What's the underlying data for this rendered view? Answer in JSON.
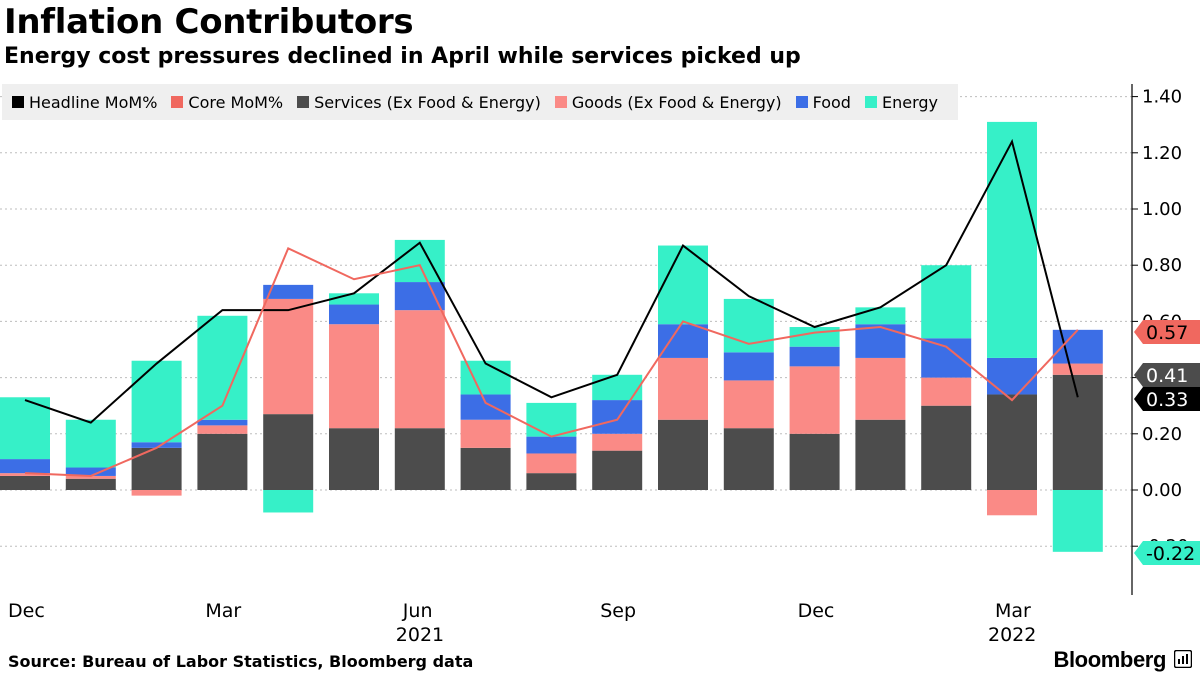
{
  "title": "Inflation Contributors",
  "subtitle": "Energy cost pressures declined in April while services picked up",
  "source": "Source: Bureau of Labor Statistics, Bloomberg data",
  "brand": "Bloomberg",
  "legend": [
    {
      "label": "Headline MoM%",
      "color": "#000000"
    },
    {
      "label": "Core MoM%",
      "color": "#f0685f"
    },
    {
      "label": "Services (Ex Food & Energy)",
      "color": "#4c4c4c"
    },
    {
      "label": "Goods (Ex Food & Energy)",
      "color": "#fa8a86"
    },
    {
      "label": "Food",
      "color": "#3c6ee6"
    },
    {
      "label": "Energy",
      "color": "#36f0c8"
    }
  ],
  "chart_data": {
    "type": "bar",
    "title": "Inflation Contributors",
    "subtitle": "Energy cost pressures declined in April while services picked up",
    "ylim": [
      -0.3,
      1.45
    ],
    "yticks": [
      1.4,
      1.2,
      1.0,
      0.8,
      0.6,
      0.4,
      0.2,
      0.0,
      -0.2
    ],
    "ytick_labels": [
      "1.40",
      "1.20",
      "1.00",
      "0.80",
      "0.60",
      "0.40",
      "0.20",
      "0.00",
      "-0.20"
    ],
    "x_tick_labels": [
      {
        "index": 0,
        "label": "Dec"
      },
      {
        "index": 3,
        "label": "Mar"
      },
      {
        "index": 6,
        "label": "Jun",
        "year": "2021"
      },
      {
        "index": 9,
        "label": "Sep"
      },
      {
        "index": 12,
        "label": "Dec"
      },
      {
        "index": 15,
        "label": "Mar",
        "year": "2022"
      }
    ],
    "categories": [
      "Dec 2020",
      "Jan 2021",
      "Feb 2021",
      "Mar 2021",
      "Apr 2021",
      "May 2021",
      "Jun 2021",
      "Jul 2021",
      "Aug 2021",
      "Sep 2021",
      "Oct 2021",
      "Nov 2021",
      "Dec 2021",
      "Jan 2022",
      "Feb 2022",
      "Mar 2022",
      "Apr 2022"
    ],
    "stacked_series": [
      {
        "name": "Services (Ex Food & Energy)",
        "color": "#4c4c4c",
        "values": [
          0.05,
          0.04,
          0.15,
          0.2,
          0.27,
          0.22,
          0.22,
          0.15,
          0.06,
          0.14,
          0.25,
          0.22,
          0.2,
          0.25,
          0.3,
          0.34,
          0.41
        ]
      },
      {
        "name": "Goods (Ex Food & Energy)",
        "color": "#fa8a86",
        "values": [
          0.01,
          0.01,
          -0.02,
          0.03,
          0.41,
          0.37,
          0.42,
          0.1,
          0.07,
          0.06,
          0.22,
          0.17,
          0.24,
          0.22,
          0.1,
          -0.09,
          0.04
        ]
      },
      {
        "name": "Food",
        "color": "#3c6ee6",
        "values": [
          0.05,
          0.03,
          0.02,
          0.02,
          0.05,
          0.07,
          0.1,
          0.09,
          0.06,
          0.12,
          0.12,
          0.1,
          0.07,
          0.12,
          0.14,
          0.13,
          0.12
        ]
      },
      {
        "name": "Energy",
        "color": "#36f0c8",
        "values": [
          0.22,
          0.17,
          0.29,
          0.37,
          -0.08,
          0.04,
          0.15,
          0.12,
          0.12,
          0.09,
          0.28,
          0.19,
          0.07,
          0.06,
          0.26,
          0.84,
          -0.22
        ]
      }
    ],
    "line_series": [
      {
        "name": "Headline MoM%",
        "color": "#000000",
        "values": [
          0.32,
          0.24,
          0.45,
          0.64,
          0.64,
          0.7,
          0.88,
          0.45,
          0.33,
          0.41,
          0.87,
          0.69,
          0.58,
          0.65,
          0.8,
          1.24,
          0.33
        ]
      },
      {
        "name": "Core MoM%",
        "color": "#f0685f",
        "values": [
          0.06,
          0.05,
          0.15,
          0.3,
          0.86,
          0.75,
          0.8,
          0.31,
          0.19,
          0.25,
          0.6,
          0.52,
          0.56,
          0.58,
          0.51,
          0.32,
          0.57
        ]
      }
    ],
    "end_labels": [
      {
        "text": "0.57",
        "value": 0.57,
        "bg": "#f0685f",
        "color": "#000000"
      },
      {
        "text": "0.41",
        "value": 0.41,
        "bg": "#4c4c4c",
        "color": "#ffffff"
      },
      {
        "text": "0.33",
        "value": 0.33,
        "bg": "#000000",
        "color": "#ffffff"
      },
      {
        "text": "-0.22",
        "value": -0.22,
        "bg": "#36f0c8",
        "color": "#000000"
      }
    ]
  }
}
